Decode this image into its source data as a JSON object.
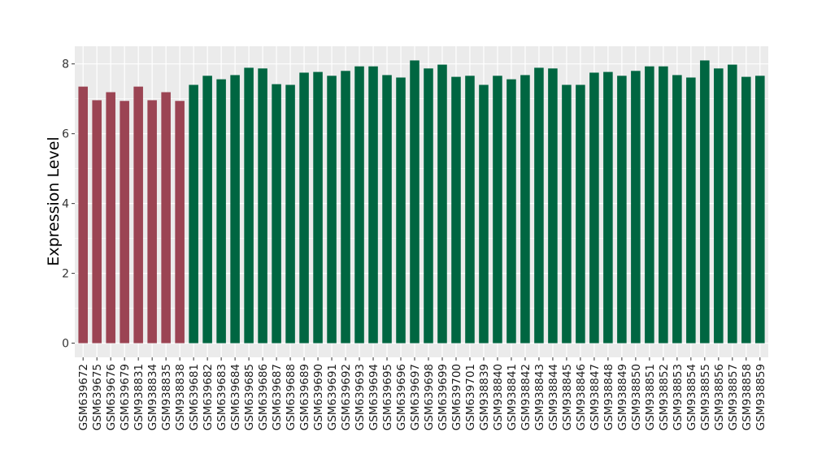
{
  "chart_data": {
    "type": "bar",
    "title": "",
    "xlabel": "",
    "ylabel": "Expression Level",
    "ylim": [
      -0.405,
      8.505
    ],
    "yticks": [
      0,
      2,
      4,
      6,
      8
    ],
    "grid": true,
    "legend": "none",
    "colors": {
      "group1": "#9b4453",
      "group2": "#006641",
      "panel": "#ebebeb",
      "grid": "#ffffff"
    },
    "categories": [
      "GSM639672",
      "GSM639675",
      "GSM639676",
      "GSM639679",
      "GSM938831",
      "GSM938834",
      "GSM938835",
      "GSM938838",
      "GSM639681",
      "GSM639682",
      "GSM639683",
      "GSM639684",
      "GSM639685",
      "GSM639686",
      "GSM639687",
      "GSM639688",
      "GSM639689",
      "GSM639690",
      "GSM639691",
      "GSM639692",
      "GSM639693",
      "GSM639694",
      "GSM639695",
      "GSM639696",
      "GSM639697",
      "GSM639698",
      "GSM639699",
      "GSM639700",
      "GSM639701",
      "GSM938839",
      "GSM938840",
      "GSM938841",
      "GSM938842",
      "GSM938843",
      "GSM938844",
      "GSM938845",
      "GSM938846",
      "GSM938847",
      "GSM938848",
      "GSM938849",
      "GSM938850",
      "GSM938851",
      "GSM938852",
      "GSM938853",
      "GSM938854",
      "GSM938855",
      "GSM938856",
      "GSM938857",
      "GSM938858",
      "GSM938859"
    ],
    "values": [
      7.35,
      6.96,
      7.19,
      6.94,
      7.35,
      6.96,
      7.19,
      6.94,
      7.4,
      7.66,
      7.56,
      7.68,
      7.89,
      7.87,
      7.42,
      7.4,
      7.75,
      7.77,
      7.66,
      7.8,
      7.93,
      7.93,
      7.68,
      7.61,
      8.1,
      7.87,
      7.98,
      7.63,
      7.66,
      7.4,
      7.66,
      7.56,
      7.68,
      7.89,
      7.87,
      7.4,
      7.4,
      7.75,
      7.77,
      7.66,
      7.8,
      7.93,
      7.93,
      7.68,
      7.61,
      8.1,
      7.87,
      7.98,
      7.63,
      7.66
    ],
    "groups": [
      1,
      1,
      1,
      1,
      1,
      1,
      1,
      1,
      2,
      2,
      2,
      2,
      2,
      2,
      2,
      2,
      2,
      2,
      2,
      2,
      2,
      2,
      2,
      2,
      2,
      2,
      2,
      2,
      2,
      2,
      2,
      2,
      2,
      2,
      2,
      2,
      2,
      2,
      2,
      2,
      2,
      2,
      2,
      2,
      2,
      2,
      2,
      2,
      2,
      2
    ]
  }
}
